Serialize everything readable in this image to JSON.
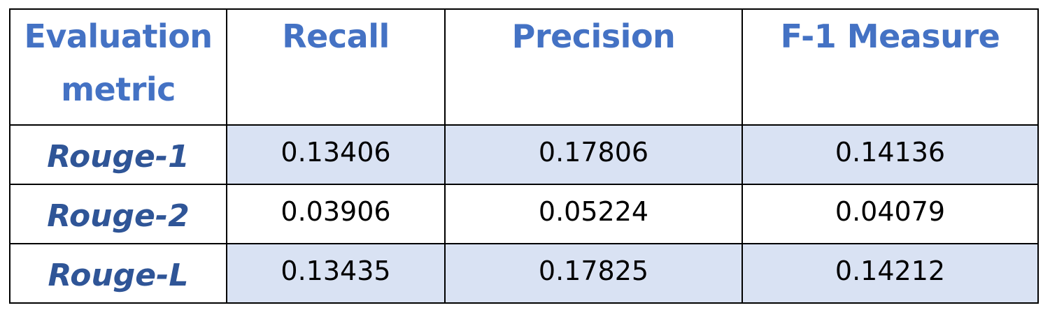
{
  "table": {
    "headers": [
      "Evaluation metric",
      "Recall",
      "Precision",
      "F-1 Measure"
    ],
    "rows": [
      {
        "metric": "Rouge-1",
        "recall": "0.13406",
        "precision": "0.17806",
        "f1": "0.14136"
      },
      {
        "metric": "Rouge-2",
        "recall": "0.03906",
        "precision": "0.05224",
        "f1": "0.04079"
      },
      {
        "metric": "Rouge-L",
        "recall": "0.13435",
        "precision": "0.17825",
        "f1": "0.14212"
      }
    ]
  },
  "colors": {
    "header_text": "#4472c4",
    "row_label_text": "#2f5597",
    "shaded_fill": "#d9e2f3",
    "border": "#000000"
  }
}
